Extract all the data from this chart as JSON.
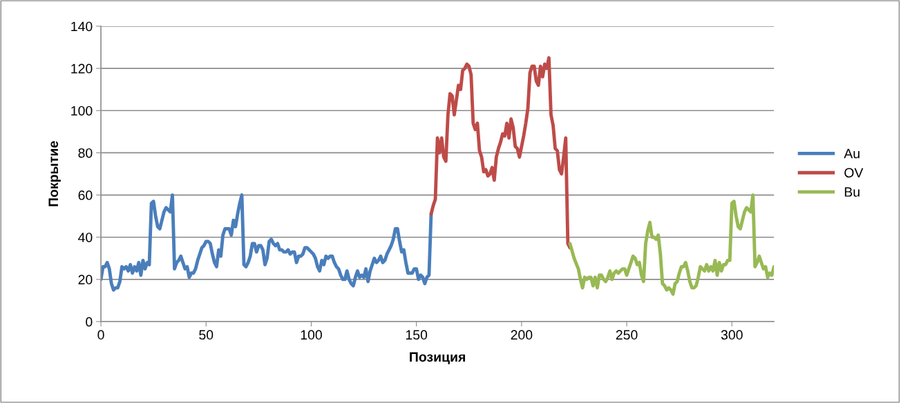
{
  "chart_data": {
    "type": "line",
    "xlabel": "Позиция",
    "ylabel": "Покрытие",
    "xlim": [
      0,
      320
    ],
    "xticks": [
      0,
      50,
      100,
      150,
      200,
      250,
      300
    ],
    "ylim": [
      0,
      140
    ],
    "yticks": [
      0,
      20,
      40,
      60,
      80,
      100,
      120,
      140
    ],
    "grid": "y",
    "legend": "right",
    "marker": "none",
    "line_style": "solid",
    "series": [
      {
        "name": "Au",
        "color": "#4a7ebb",
        "x": [
          0,
          1,
          2,
          3,
          4,
          5,
          6,
          7,
          8,
          9,
          10,
          11,
          12,
          13,
          14,
          15,
          16,
          17,
          18,
          19,
          20,
          21,
          22,
          23,
          24,
          25,
          26,
          27,
          28,
          29,
          30,
          31,
          32,
          33,
          34,
          35,
          36,
          37,
          38,
          39,
          40,
          41,
          42,
          43,
          44,
          45,
          46,
          47,
          48,
          49,
          50,
          51,
          52,
          53,
          54,
          55,
          56,
          57,
          58,
          59,
          60,
          61,
          62,
          63,
          64,
          65,
          66,
          67,
          68,
          69,
          70,
          71,
          72,
          73,
          74,
          75,
          76,
          77,
          78,
          79,
          80,
          81,
          82,
          83,
          84,
          85,
          86,
          87,
          88,
          89,
          90,
          91,
          92,
          93,
          94,
          95,
          96,
          97,
          98,
          99,
          100,
          101,
          102,
          103,
          104,
          105,
          106,
          107,
          108,
          109,
          110,
          111,
          112,
          113,
          114,
          115,
          116,
          117,
          118,
          119,
          120,
          121,
          122,
          123,
          124,
          125,
          126,
          127,
          128,
          129,
          130,
          131,
          132,
          133,
          134,
          135,
          136,
          137,
          138,
          139,
          140,
          141,
          142,
          143,
          144,
          145,
          146,
          147,
          148,
          149,
          150,
          151,
          152,
          153,
          154,
          155,
          156,
          157
        ],
        "values": [
          20,
          26,
          26,
          28,
          25,
          18,
          15,
          16,
          16,
          19,
          26,
          25,
          26,
          24,
          27,
          23,
          26,
          24,
          28,
          22,
          29,
          25,
          28,
          27,
          56,
          57,
          50,
          45,
          44,
          48,
          52,
          54,
          53,
          52,
          60,
          25,
          28,
          29,
          31,
          28,
          25,
          26,
          21,
          23,
          23,
          25,
          29,
          32,
          35,
          36,
          38,
          38,
          37,
          32,
          28,
          26,
          34,
          31,
          41,
          44,
          44,
          44,
          41,
          48,
          45,
          51,
          56,
          60,
          27,
          26,
          28,
          31,
          37,
          37,
          33,
          36,
          36,
          34,
          27,
          30,
          38,
          39,
          37,
          36,
          37,
          34,
          34,
          33,
          33,
          34,
          32,
          33,
          33,
          28,
          31,
          31,
          32,
          35,
          35,
          34,
          33,
          32,
          30,
          26,
          24,
          29,
          27,
          31,
          30,
          31,
          31,
          28,
          26,
          25,
          22,
          20,
          20,
          24,
          20,
          18,
          17,
          21,
          24,
          21,
          22,
          21,
          25,
          19,
          24,
          27,
          30,
          28,
          29,
          31,
          28,
          29,
          32,
          34,
          36,
          39,
          44,
          44,
          38,
          33,
          34,
          28,
          23,
          23,
          23,
          25,
          25,
          20,
          22,
          21,
          18,
          21,
          22,
          51
        ]
      },
      {
        "name": "OV",
        "color": "#be4b48",
        "x": [
          157,
          158,
          159,
          160,
          161,
          162,
          163,
          164,
          165,
          166,
          167,
          168,
          169,
          170,
          171,
          172,
          173,
          174,
          175,
          176,
          177,
          178,
          179,
          180,
          181,
          182,
          183,
          184,
          185,
          186,
          187,
          188,
          189,
          190,
          191,
          192,
          193,
          194,
          195,
          196,
          197,
          198,
          199,
          200,
          201,
          202,
          203,
          204,
          205,
          206,
          207,
          208,
          209,
          210,
          211,
          212,
          213,
          214,
          215,
          216,
          217,
          218,
          219,
          220,
          221,
          222,
          223
        ],
        "values": [
          51,
          55,
          58,
          87,
          80,
          87,
          78,
          76,
          98,
          108,
          107,
          98,
          105,
          112,
          110,
          119,
          120,
          122,
          121,
          117,
          94,
          91,
          94,
          81,
          78,
          71,
          72,
          69,
          70,
          73,
          67,
          78,
          82,
          85,
          89,
          88,
          94,
          87,
          96,
          92,
          83,
          82,
          78,
          83,
          88,
          94,
          101,
          118,
          121,
          121,
          114,
          112,
          121,
          116,
          122,
          120,
          125,
          98,
          93,
          82,
          81,
          72,
          70,
          78,
          87,
          37,
          35
        ]
      },
      {
        "name": "Bu",
        "color": "#98b954",
        "x": [
          223,
          225,
          227,
          228,
          229,
          230,
          231,
          232,
          233,
          234,
          235,
          236,
          237,
          238,
          239,
          240,
          241,
          242,
          243,
          244,
          245,
          246,
          247,
          248,
          249,
          250,
          251,
          252,
          253,
          254,
          255,
          256,
          257,
          258,
          259,
          260,
          261,
          262,
          263,
          264,
          265,
          266,
          267,
          268,
          269,
          270,
          271,
          272,
          273,
          274,
          275,
          276,
          277,
          278,
          279,
          280,
          281,
          282,
          283,
          284,
          285,
          286,
          287,
          288,
          289,
          290,
          291,
          292,
          293,
          294,
          295,
          296,
          297,
          298,
          299,
          300,
          301,
          302,
          303,
          304,
          305,
          306,
          307,
          308,
          309,
          310,
          311,
          312,
          313,
          314,
          315,
          316,
          317,
          318,
          319,
          320
        ],
        "values": [
          37,
          30,
          25,
          20,
          16,
          21,
          20,
          21,
          21,
          17,
          21,
          16,
          22,
          22,
          20,
          19,
          21,
          24,
          20,
          23,
          24,
          23,
          24,
          25,
          25,
          22,
          25,
          28,
          31,
          30,
          27,
          28,
          22,
          19,
          37,
          43,
          47,
          40,
          40,
          39,
          41,
          32,
          18,
          17,
          15,
          16,
          15,
          13,
          18,
          19,
          23,
          26,
          26,
          28,
          24,
          19,
          16,
          16,
          17,
          21,
          26,
          25,
          24,
          27,
          24,
          26,
          24,
          29,
          22,
          28,
          24,
          27,
          27,
          29,
          29,
          56,
          57,
          50,
          45,
          44,
          48,
          52,
          54,
          53,
          52,
          60,
          26,
          28,
          31,
          28,
          25,
          26,
          21,
          23,
          22,
          26
        ]
      }
    ]
  }
}
